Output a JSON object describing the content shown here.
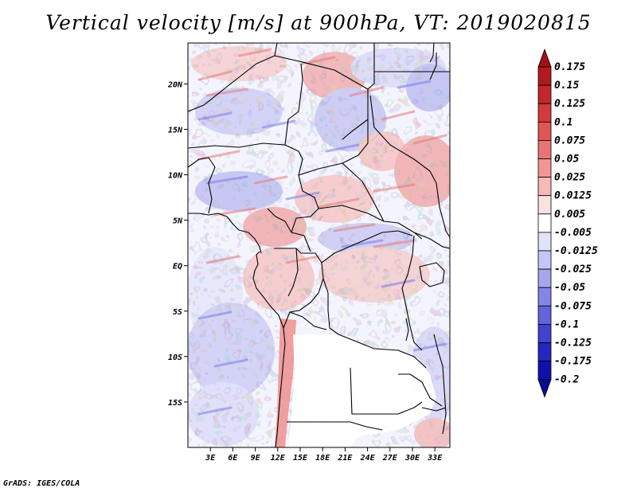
{
  "title": "Vertical velocity [m/s] at 900hPa, VT: 2019020815",
  "credit": "GrADS: IGES/COLA",
  "map": {
    "lon_range": [
      0,
      35
    ],
    "lat_range": [
      -20,
      24.5
    ],
    "lat_ticks": [
      {
        "value": 20,
        "label": "20N"
      },
      {
        "value": 15,
        "label": "15N"
      },
      {
        "value": 10,
        "label": "10N"
      },
      {
        "value": 5,
        "label": "5N"
      },
      {
        "value": 0,
        "label": "EQ"
      },
      {
        "value": -5,
        "label": "5S"
      },
      {
        "value": -10,
        "label": "10S"
      },
      {
        "value": -15,
        "label": "15S"
      }
    ],
    "lon_ticks": [
      {
        "value": 3,
        "label": "3E"
      },
      {
        "value": 6,
        "label": "6E"
      },
      {
        "value": 9,
        "label": "9E"
      },
      {
        "value": 12,
        "label": "12E"
      },
      {
        "value": 15,
        "label": "15E"
      },
      {
        "value": 18,
        "label": "18E"
      },
      {
        "value": 21,
        "label": "21E"
      },
      {
        "value": 24,
        "label": "24E"
      },
      {
        "value": 27,
        "label": "27E"
      },
      {
        "value": 30,
        "label": "30E"
      },
      {
        "value": 33,
        "label": "33E"
      }
    ]
  },
  "colorbar": {
    "labels": [
      "0.175",
      "0.15",
      "0.125",
      "0.1",
      "0.075",
      "0.05",
      "0.025",
      "0.0125",
      "0.005",
      "-0.005",
      "-0.0125",
      "-0.025",
      "-0.05",
      "-0.075",
      "-0.1",
      "-0.125",
      "-0.175",
      "-0.2"
    ],
    "colors": [
      "#a50f15",
      "#b11b1e",
      "#c2272c",
      "#d43a3c",
      "#e05555",
      "#ea7474",
      "#f29595",
      "#f8b8b8",
      "#fde0e0",
      "#ffffff",
      "#e2e2fb",
      "#c6c6f5",
      "#a6a6ee",
      "#8585e6",
      "#6363dc",
      "#4242cf",
      "#2626bf",
      "#1010ac",
      "#0a0a96"
    ]
  }
}
